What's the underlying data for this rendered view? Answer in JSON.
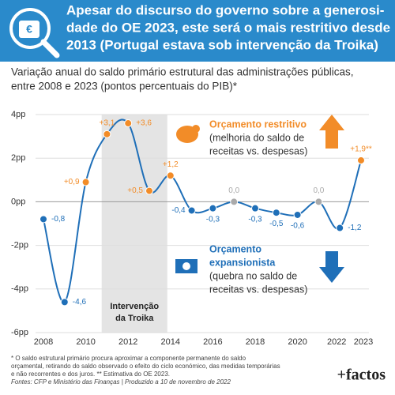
{
  "header": {
    "title_lines": [
      "Apesar do discurso do governo sobre a generosi-",
      "dade do OE 2023, este será o mais restritivo desde",
      "2013 (Portugal estava sob intervenção da Troika)"
    ]
  },
  "chart_data": {
    "type": "line",
    "subtitle_lines": [
      "Variação anual do saldo primário estrutural das administrações públicas,",
      "entre 2008 e 2023 (pontos percentuais do PIB)*"
    ],
    "x": [
      2008,
      2009,
      2010,
      2011,
      2012,
      2013,
      2014,
      2015,
      2016,
      2017,
      2018,
      2019,
      2020,
      2021,
      2022,
      2023
    ],
    "series": [
      {
        "name": "Saldo primário estrutural",
        "color": "#1f6fb8",
        "values": [
          -0.8,
          -4.6,
          0.9,
          3.1,
          3.6,
          0.5,
          1.2,
          -0.4,
          -0.3,
          0.0,
          -0.3,
          -0.5,
          -0.6,
          0.0,
          -1.2,
          1.9
        ],
        "value_labels": [
          "-0,8",
          "-4,6",
          "+0,9",
          "+3,1",
          "+3,6",
          "+0,5",
          "+1,2",
          "-0,4",
          "-0,3",
          "0,0",
          "-0,3",
          "-0,5",
          "-0,6",
          "0,0",
          "-1,2",
          "+1,9**"
        ],
        "point_colors": [
          "#1f6fb8",
          "#1f6fb8",
          "#f28c28",
          "#f28c28",
          "#f28c28",
          "#f28c28",
          "#f28c28",
          "#1f6fb8",
          "#1f6fb8",
          "#aaaaaa",
          "#1f6fb8",
          "#1f6fb8",
          "#1f6fb8",
          "#aaaaaa",
          "#1f6fb8",
          "#f28c28"
        ]
      }
    ],
    "xlim": [
      2008,
      2023
    ],
    "xticks": [
      2008,
      2010,
      2012,
      2014,
      2016,
      2018,
      2020,
      2022,
      2023
    ],
    "ylim": [
      -6,
      4
    ],
    "yticks": [
      {
        "value": 4,
        "label": "4pp"
      },
      {
        "value": 2,
        "label": "2pp"
      },
      {
        "value": 0,
        "label": "0pp"
      },
      {
        "value": -2,
        "label": "-2pp"
      },
      {
        "value": -4,
        "label": "-4pp"
      },
      {
        "value": -6,
        "label": "-6pp"
      }
    ],
    "grid": true,
    "shaded_period": {
      "label_lines": [
        "Intervenção",
        "da Troika"
      ],
      "x_start": 2010.75,
      "x_end": 2013.85
    },
    "annotations": [
      {
        "title_lines": [
          "Orçamento restritivo"
        ],
        "text_lines": [
          "(melhoria do saldo de",
          "receitas vs. despesas)"
        ],
        "color": "#f28c28"
      },
      {
        "title_lines": [
          "Orçamento",
          "expansionista"
        ],
        "text_lines": [
          "(quebra no saldo de",
          "receitas vs. despesas)"
        ],
        "color": "#1f6fb8"
      }
    ]
  },
  "footer": {
    "notes": [
      "* O saldo estrutural primário procura aproximar a componente permanente do saldo",
      "orçamental, retirando do saldo observado o efeito do ciclo económico, das medidas temporárias",
      "e não recorrentes e dos juros. ** Estimativa do OE 2023.",
      "Fontes: CFP e Ministério das Finanças | Produzido a 10 de novembro de 2022"
    ],
    "logo": "+factos"
  }
}
